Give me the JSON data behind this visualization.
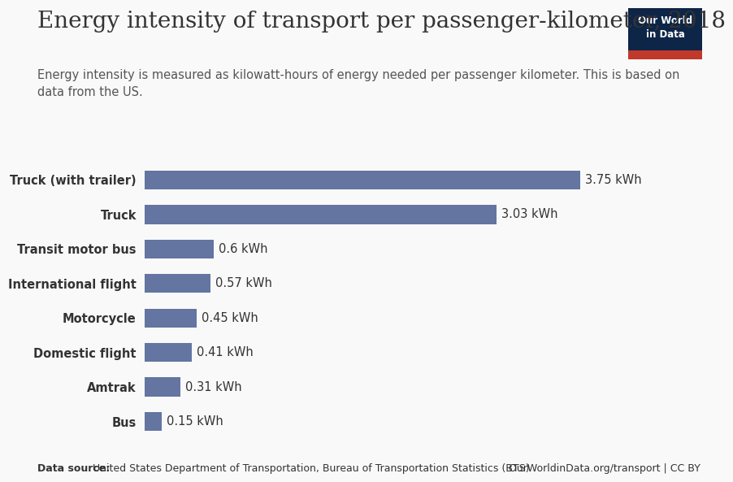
{
  "title": "Energy intensity of transport per passenger-kilometer, 2018",
  "subtitle": "Energy intensity is measured as kilowatt-hours of energy needed per passenger kilometer. This is based on\ndata from the US.",
  "categories": [
    "Truck (with trailer)",
    "Truck",
    "Transit motor bus",
    "International flight",
    "Motorcycle",
    "Domestic flight",
    "Amtrak",
    "Bus"
  ],
  "values": [
    3.75,
    3.03,
    0.6,
    0.57,
    0.45,
    0.41,
    0.31,
    0.15
  ],
  "bar_color": "#6375a0",
  "background_color": "#f9f9f9",
  "label_color": "#333333",
  "footer_datasource_bold": "Data source:",
  "footer_datasource_rest": " United States Department of Transportation, Bureau of Transportation Statistics (BTS)",
  "footer_right": "OurWorldinData.org/transport | CC BY",
  "logo_bg": "#0d2547",
  "logo_red": "#c0392b",
  "logo_text": "Our World\nin Data",
  "xlim": [
    0,
    4.1
  ],
  "title_fontsize": 20,
  "subtitle_fontsize": 10.5,
  "label_fontsize": 10.5,
  "value_fontsize": 10.5,
  "footer_fontsize": 9
}
